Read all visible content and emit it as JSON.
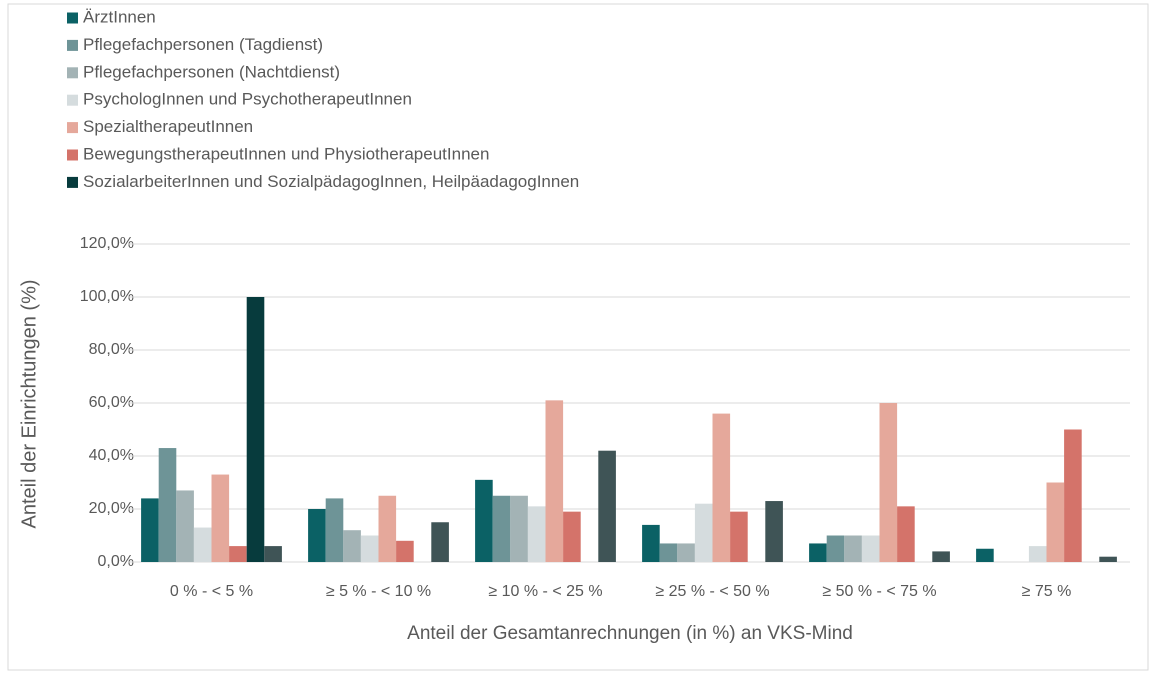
{
  "chart_data": {
    "type": "bar",
    "x_label": "Anteil der Gesamtanrechnungen (in %) an VKS-Mind",
    "y_label": "Anteil der Einrichtungen (%)",
    "categories": [
      "0 % - < 5 %",
      "≥ 5 % - < 10 %",
      "≥ 10 % - < 25 %",
      "≥ 25 % - < 50 %",
      "≥ 50 % - < 75 %",
      "≥ 75 %"
    ],
    "series": [
      {
        "name": "ÄrztInnen",
        "color": "#0b6165",
        "values": [
          24,
          20,
          31,
          14,
          7,
          5
        ]
      },
      {
        "name": "Pflegefachpersonen (Tagdienst)",
        "color": "#6e9497",
        "values": [
          43,
          24,
          25,
          7,
          10,
          null
        ]
      },
      {
        "name": "Pflegefachpersonen (Nachtdienst)",
        "color": "#a3b3b5",
        "values": [
          27,
          12,
          25,
          7,
          10,
          null
        ]
      },
      {
        "name": "PsychologInnen und PsychotherapeutInnen",
        "color": "#d5dcde",
        "values": [
          13,
          10,
          21,
          22,
          10,
          6
        ]
      },
      {
        "name": "SpezialtherapeutInnen",
        "color": "#e5a89b",
        "values": [
          33,
          25,
          61,
          56,
          60,
          30
        ]
      },
      {
        "name": "BewegungstherapeutInnen und PhysiotherapeutInnen",
        "color": "#d4736a",
        "values": [
          6,
          8,
          19,
          19,
          21,
          50
        ]
      },
      {
        "name": "SozialarbeiterInnen und SozialpädagogInnen, HeilpäadagogInnen",
        "color": "#073b3d",
        "values": [
          100,
          null,
          null,
          null,
          null,
          null
        ]
      },
      {
        "color": "#3f5456",
        "values": [
          6,
          15,
          42,
          23,
          4,
          2
        ]
      }
    ],
    "ylim": [
      0,
      120
    ],
    "yticks": [
      {
        "value": 0,
        "label": "0,0%"
      },
      {
        "value": 20,
        "label": "20,0%"
      },
      {
        "value": 40,
        "label": "40,0%"
      },
      {
        "value": 60,
        "label": "60,0%"
      },
      {
        "value": 80,
        "label": "80,0%"
      },
      {
        "value": 100,
        "label": "100,0%"
      },
      {
        "value": 120,
        "label": "120,0%"
      }
    ],
    "grid": true,
    "legend": "top-left"
  }
}
